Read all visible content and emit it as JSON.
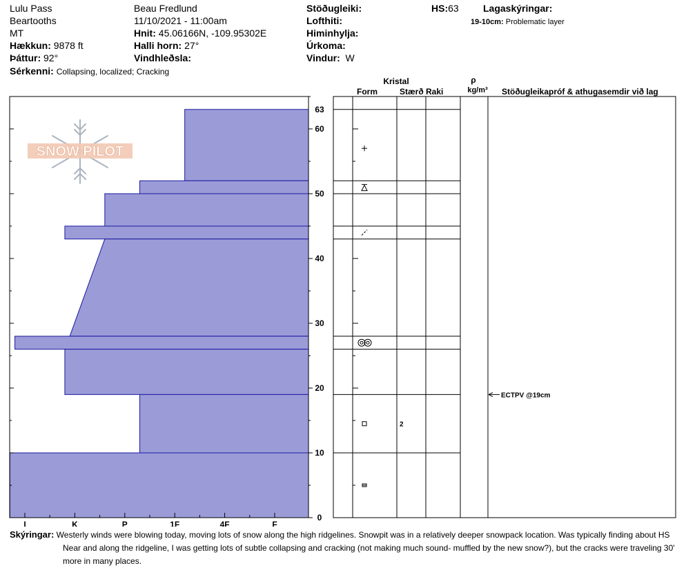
{
  "header": {
    "location": "Lulu Pass",
    "range": "Beartooths",
    "state": "MT",
    "elevation_label": "Hækkun:",
    "elevation": "9878 ft",
    "aspect_label": "Þáttur:",
    "aspect": "92°",
    "features_label": "Sérkenni:",
    "features": "Collapsing, localized;  Cracking",
    "observer": "Beau  Fredlund",
    "datetime": "11/10/2021 - 11:00am",
    "coords_label": "Hnit:",
    "coords": "45.06166N, -109.95302E",
    "slope_label": "Halli horn:",
    "slope": "27°",
    "wind_loading_label": "Vindhleðsla:",
    "wind_loading": "",
    "stability_label": "Stöðugleiki:",
    "stability": "",
    "air_temp_label": "Lofthiti:",
    "air_temp": "",
    "sky_label": "Himinhylja:",
    "sky": "",
    "precip_label": "Úrkoma:",
    "precip": "",
    "wind_label": "Vindur:",
    "wind": "W",
    "hs_label": "HS:",
    "hs": "63",
    "layer_notes_label": "Lagaskýringar:",
    "layer_note_depth": "19-10cm:",
    "layer_note_text": "Problematic layer"
  },
  "table_headers": {
    "kristal": "Kristal",
    "form": "Form",
    "size": "Stærð",
    "moisture": "Raki",
    "rho": "ρ",
    "density_unit": "kg/m³",
    "tests": "Stöðugleikapróf & athugasemdir við lag"
  },
  "logo_text": "SNOW PILOT",
  "remarks_label": "Skýringar:",
  "remarks": [
    "Westerly winds were blowing today, moving lots of snow along the high ridgelines.  Snowpit was in a relatively deeper snowpack location.  Was typically finding about HS",
    "Near and along the ridgeline, I was getting lots of subtle collapsing and cracking (not making much sound- muffled by the new snow?), but the cracks were traveling 30'",
    "more in many places."
  ],
  "chart_data": {
    "type": "snow_profile",
    "hardness_scale": [
      "I",
      "K",
      "P",
      "1F",
      "4F",
      "F"
    ],
    "depth_range": [
      0,
      63
    ],
    "depth_ticks": [
      0,
      10,
      20,
      30,
      40,
      50,
      60,
      63
    ],
    "hs": 63,
    "hardness_layers": [
      {
        "top": 63,
        "bottom": 52,
        "hardness_top": 3.2,
        "hardness_bottom": 3.2
      },
      {
        "top": 52,
        "bottom": 50,
        "hardness_top": 2.3,
        "hardness_bottom": 2.3
      },
      {
        "top": 50,
        "bottom": 45,
        "hardness_top": 1.6,
        "hardness_bottom": 1.6
      },
      {
        "top": 45,
        "bottom": 43,
        "hardness_top": 0.8,
        "hardness_bottom": 0.8
      },
      {
        "top": 43,
        "bottom": 28,
        "hardness_top": 1.6,
        "hardness_bottom": 0.9
      },
      {
        "top": 28,
        "bottom": 26,
        "hardness_top": -0.2,
        "hardness_bottom": -0.2
      },
      {
        "top": 26,
        "bottom": 19,
        "hardness_top": 0.8,
        "hardness_bottom": 0.8
      },
      {
        "top": 19,
        "bottom": 10,
        "hardness_top": 2.3,
        "hardness_bottom": 2.3
      },
      {
        "top": 10,
        "bottom": 0,
        "hardness_top": -0.3,
        "hardness_bottom": -0.3
      }
    ],
    "layer_lines": [
      63,
      52,
      50,
      45,
      43,
      28,
      26,
      19,
      10
    ],
    "grain_forms": [
      {
        "depth": 57,
        "symbol": "+"
      },
      {
        "depth": 51,
        "symbol": "surface-hoar"
      },
      {
        "depth": 44,
        "symbol": "/"
      },
      {
        "depth": 27,
        "symbol": "melt-forms"
      },
      {
        "depth": 14.5,
        "symbol": "faceted"
      },
      {
        "depth": 5,
        "symbol": "rounded-faceted"
      }
    ],
    "grain_sizes": [
      {
        "depth": 14.5,
        "value": "2"
      }
    ],
    "tests": [
      {
        "depth": 19,
        "label": "ECTPV @19cm"
      }
    ]
  }
}
